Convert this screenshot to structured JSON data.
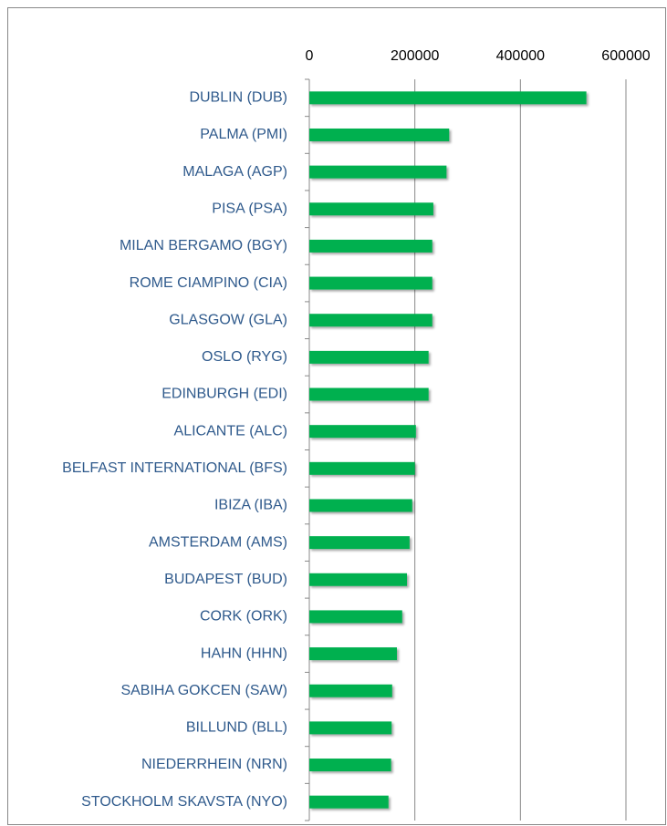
{
  "chart_data": {
    "type": "hbar",
    "categories": [
      "DUBLIN (DUB)",
      "PALMA (PMI)",
      "MALAGA (AGP)",
      "PISA (PSA)",
      "MILAN BERGAMO (BGY)",
      "ROME CIAMPINO (CIA)",
      "GLASGOW (GLA)",
      "OSLO (RYG)",
      "EDINBURGH (EDI)",
      "ALICANTE (ALC)",
      "BELFAST INTERNATIONAL (BFS)",
      "IBIZA (IBA)",
      "AMSTERDAM (AMS)",
      "BUDAPEST (BUD)",
      "CORK (ORK)",
      "HAHN (HHN)",
      "SABIHA GOKCEN (SAW)",
      "BILLUND (BLL)",
      "NIEDERRHEIN (NRN)",
      "STOCKHOLM SKAVSTA (NYO)"
    ],
    "values": [
      525000,
      265000,
      260000,
      235000,
      233000,
      233000,
      233000,
      226000,
      226000,
      202000,
      200000,
      195000,
      190000,
      185000,
      176000,
      166000,
      157000,
      156000,
      155000,
      150000
    ],
    "color": "#00b050",
    "xlim": [
      0,
      600000
    ],
    "xticks": [
      0,
      200000,
      400000,
      600000
    ],
    "grid": true
  }
}
